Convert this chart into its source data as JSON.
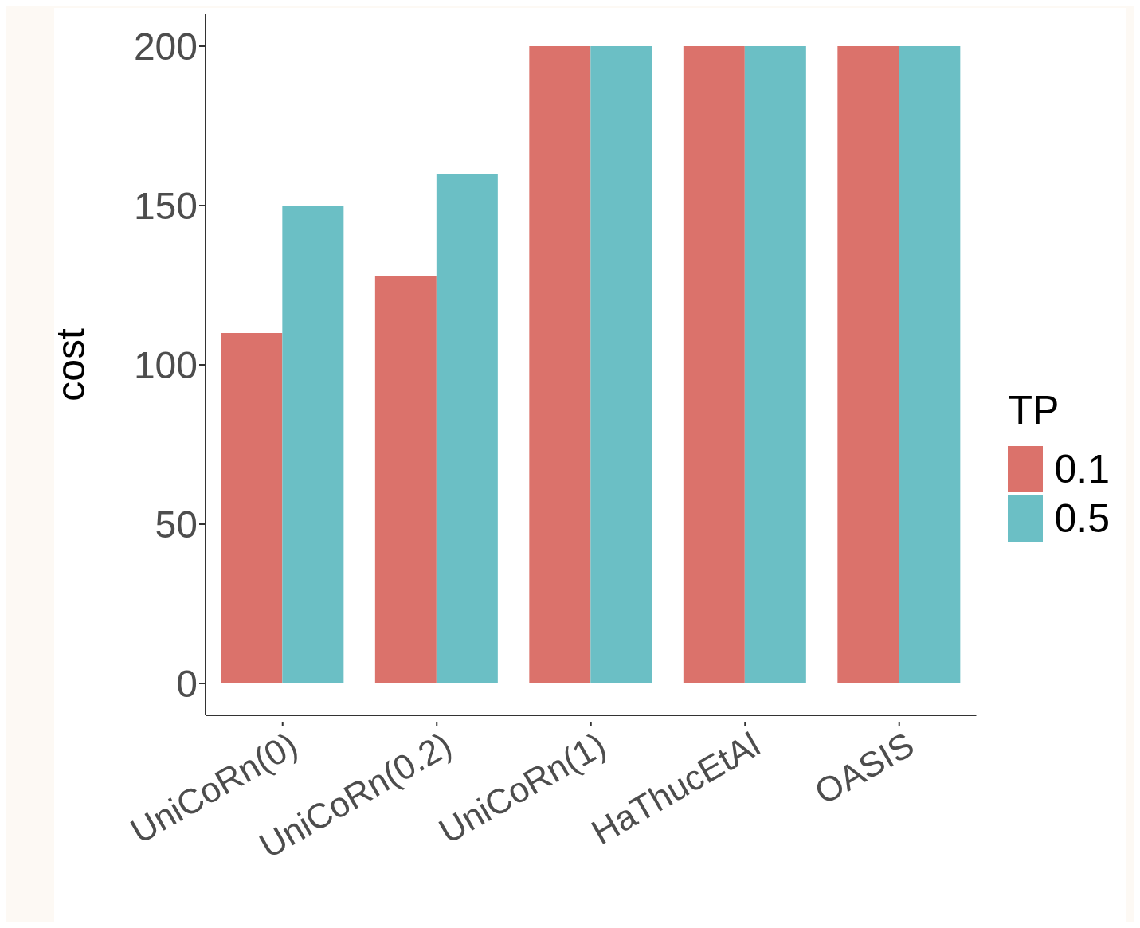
{
  "chart_data": {
    "type": "bar",
    "ylabel": "cost",
    "legend_title": "TP",
    "legend": "right",
    "grid": false,
    "categories": [
      "UniCoRn(0)",
      "UniCoRn(0.2)",
      "UniCoRn(1)",
      "HaThucEtAl",
      "OASIS"
    ],
    "series": [
      {
        "name": "0.1",
        "color": "#db726b",
        "values": [
          110,
          128,
          200,
          200,
          200
        ]
      },
      {
        "name": "0.5",
        "color": "#6bbfc5",
        "values": [
          150,
          160,
          200,
          200,
          200
        ]
      }
    ],
    "ylim": [
      -10,
      210
    ],
    "yticks": [
      0,
      50,
      100,
      150,
      200
    ]
  }
}
